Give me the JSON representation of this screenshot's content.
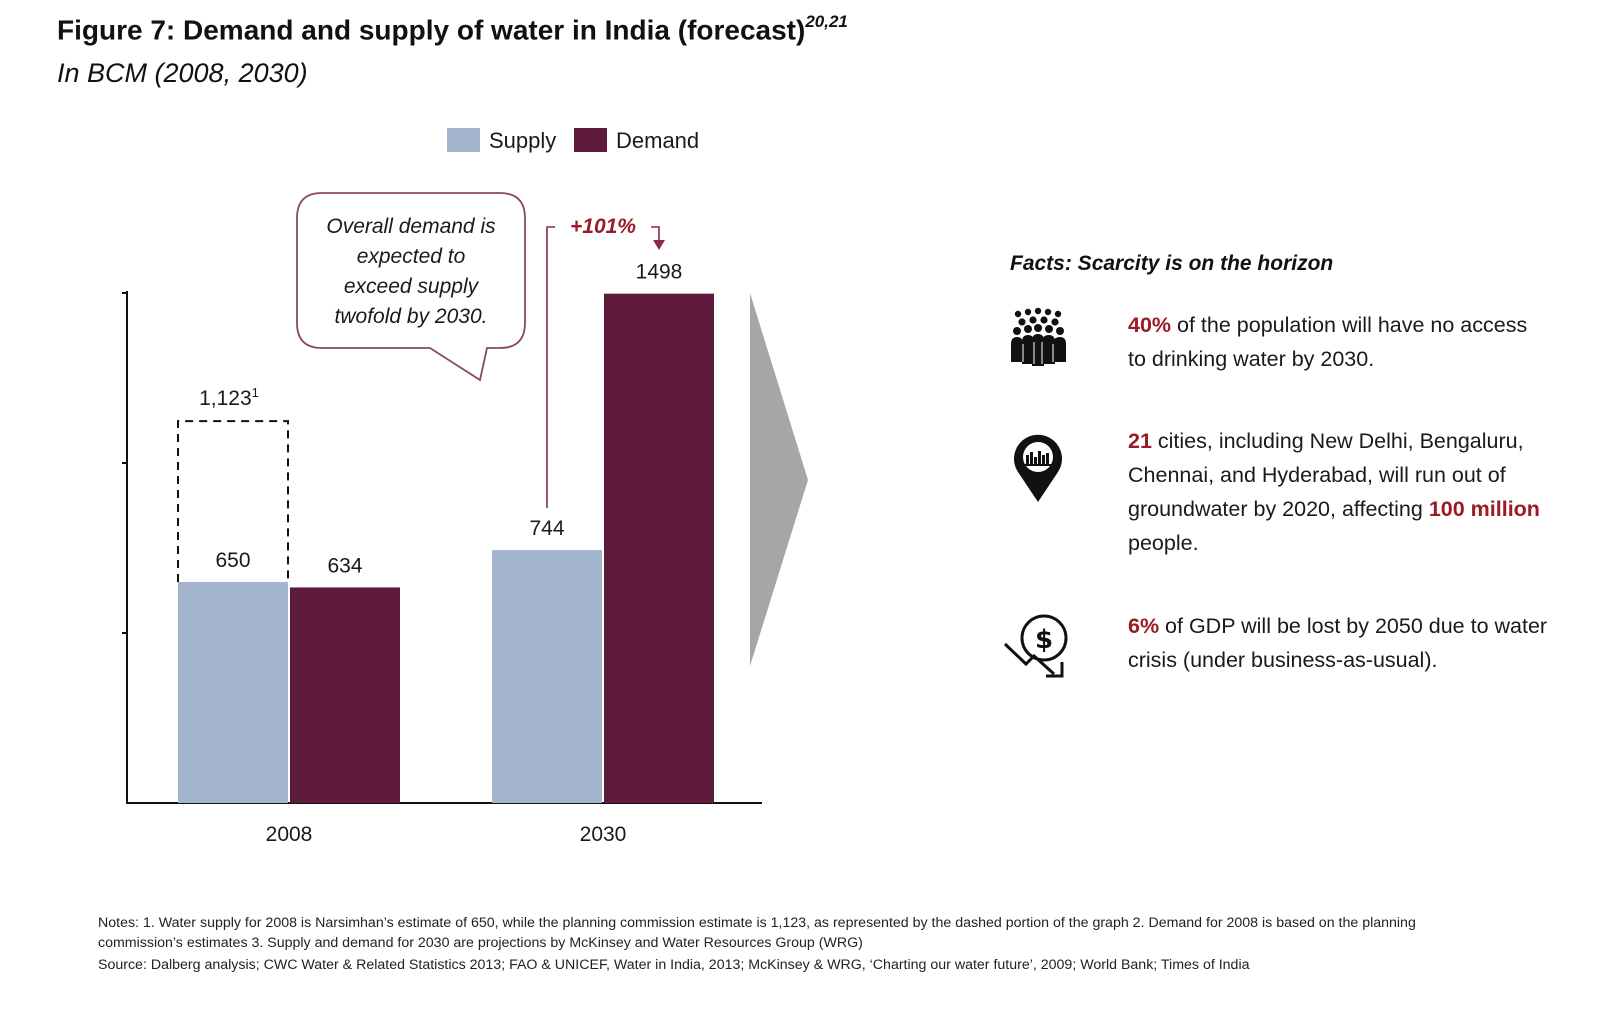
{
  "figure": {
    "title": "Figure 7: Demand and supply of water in India (forecast)",
    "title_refs": "20,21",
    "subtitle": "In BCM (2008, 2030)"
  },
  "chart_data": {
    "type": "bar",
    "title": "Demand and supply of water in India (forecast)",
    "units": "BCM",
    "categories": [
      "2008",
      "2030"
    ],
    "series": [
      {
        "name": "Supply",
        "color": "#a3b5cc",
        "values": [
          650,
          744
        ],
        "labels": [
          "650",
          "744"
        ]
      },
      {
        "name": "Demand",
        "color": "#5e1a3c",
        "values": [
          634,
          1498
        ],
        "labels": [
          "634",
          "1498"
        ]
      }
    ],
    "alternate_estimate": {
      "category": "2008",
      "series": "Supply",
      "value": 1123,
      "label": "1,123",
      "footnote": "1",
      "style": "dashed"
    },
    "growth_annotation": {
      "label": "+101%",
      "from": "Supply 2030",
      "to": "Demand 2030"
    },
    "callout": {
      "lines": [
        "Overall demand is",
        "expected to",
        "exceed supply",
        "twofold by 2030."
      ]
    },
    "ylim": [
      0,
      1500
    ],
    "xlabel": "",
    "ylabel": "",
    "legend": "top-center",
    "grid": false
  },
  "facts": {
    "title": "Facts: Scarcity is on the horizon",
    "items": [
      {
        "icon": "population-icon",
        "highlight": "40%",
        "text": " of the population will have no access to drinking water by 2030."
      },
      {
        "icon": "city-map-pin-icon",
        "highlight": "21",
        "text_a": " cities, including New Delhi, Bengaluru, Chennai, and Hyderabad, will run out of groundwater by 2020, affecting ",
        "highlight_b": "100 million",
        "text_b": " people."
      },
      {
        "icon": "money-loss-icon",
        "highlight": "6%",
        "text": " of GDP will be lost by 2050 due to water crisis (under business-as-usual)."
      }
    ]
  },
  "notes": "Notes: 1. Water supply for 2008 is Narsimhan’s estimate of 650, while the planning commission estimate is 1,123, as represented by the dashed portion of the graph 2. Demand for 2008 is based on the planning commission’s estimates 3. Supply and demand for 2030 are projections by McKinsey and Water Resources Group (WRG)",
  "source": "Source: Dalberg analysis; CWC Water & Related Statistics 2013; FAO & UNICEF, Water in India, 2013; McKinsey & WRG, ‘Charting our water future’, 2009; World Bank; Times of India"
}
